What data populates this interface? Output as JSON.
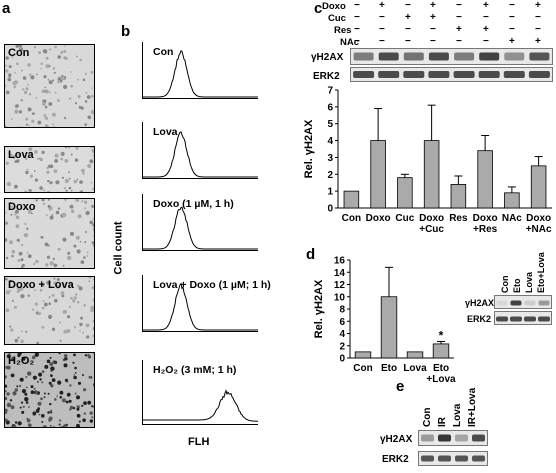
{
  "panel_a": {
    "letter": "a",
    "images": [
      {
        "label": "Con"
      },
      {
        "label": "Lova"
      },
      {
        "label": "Doxo"
      },
      {
        "label": "Doxo + Lova"
      },
      {
        "label": "H₂O₂"
      }
    ]
  },
  "panel_b": {
    "letter": "b",
    "ylabel": "Cell count",
    "xlabel": "FLH",
    "histograms": [
      {
        "label": "Con"
      },
      {
        "label": "Lova"
      },
      {
        "label": "Doxo (1 µM, 1 h)"
      },
      {
        "label": "Lova + Doxo (1 µM; 1 h)"
      },
      {
        "label": "H₂O₂ (3 mM; 1 h)"
      }
    ]
  },
  "panel_c": {
    "letter": "c",
    "treatments": [
      {
        "name": "Doxo",
        "marks": [
          "−",
          "+",
          "−",
          "+",
          "−",
          "+",
          "−",
          "+"
        ]
      },
      {
        "name": "Cuc",
        "marks": [
          "−",
          "−",
          "+",
          "+",
          "−",
          "−",
          "−",
          "−"
        ]
      },
      {
        "name": "Res",
        "marks": [
          "−",
          "−",
          "−",
          "−",
          "+",
          "+",
          "−",
          "−"
        ]
      },
      {
        "name": "NAc",
        "marks": [
          "−",
          "−",
          "−",
          "−",
          "−",
          "−",
          "+",
          "+"
        ]
      }
    ],
    "blot_labels": [
      "γH2AX",
      "ERK2"
    ]
  },
  "panel_d": {
    "letter": "d",
    "blot_lanes": [
      "Con",
      "Eto",
      "Lova",
      "Eto+Lova"
    ],
    "blot_labels": [
      "γH2AX",
      "ERK2"
    ],
    "significance": "*"
  },
  "panel_e": {
    "letter": "e",
    "lanes": [
      "Con",
      "IR",
      "Lova",
      "IR+Lova"
    ],
    "blot_labels": [
      "γH2AX",
      "ERK2"
    ]
  },
  "chart_data": [
    {
      "type": "bar",
      "categories": [
        "Con",
        "Doxo",
        "Cuc",
        "Doxo\n+Cuc",
        "Res",
        "Doxo\n+Res",
        "NAc",
        "Doxo\n+NAc"
      ],
      "values": [
        1.0,
        4.0,
        1.8,
        4.0,
        1.4,
        3.4,
        0.9,
        2.5
      ],
      "errors": [
        0,
        1.9,
        0.2,
        2.1,
        0.5,
        0.9,
        0.35,
        0.55
      ],
      "ylabel": "Rel. γH2AX",
      "ylim": [
        0,
        7
      ],
      "yticks": [
        "0",
        "1",
        "2",
        "3",
        "4",
        "5",
        "6",
        "7"
      ],
      "bar_color": "#aaaaaa"
    },
    {
      "type": "bar",
      "categories": [
        "Con",
        "Eto",
        "Lova",
        "Eto\n+Lova"
      ],
      "values": [
        1.0,
        10.0,
        1.0,
        2.3
      ],
      "errors": [
        0,
        4.8,
        0,
        0.4
      ],
      "ylabel": "Rel. γH2AX",
      "ylim": [
        0,
        16
      ],
      "yticks": [
        "0",
        "2",
        "4",
        "6",
        "8",
        "10",
        "12",
        "14",
        "16"
      ],
      "bar_color": "#aaaaaa"
    }
  ]
}
